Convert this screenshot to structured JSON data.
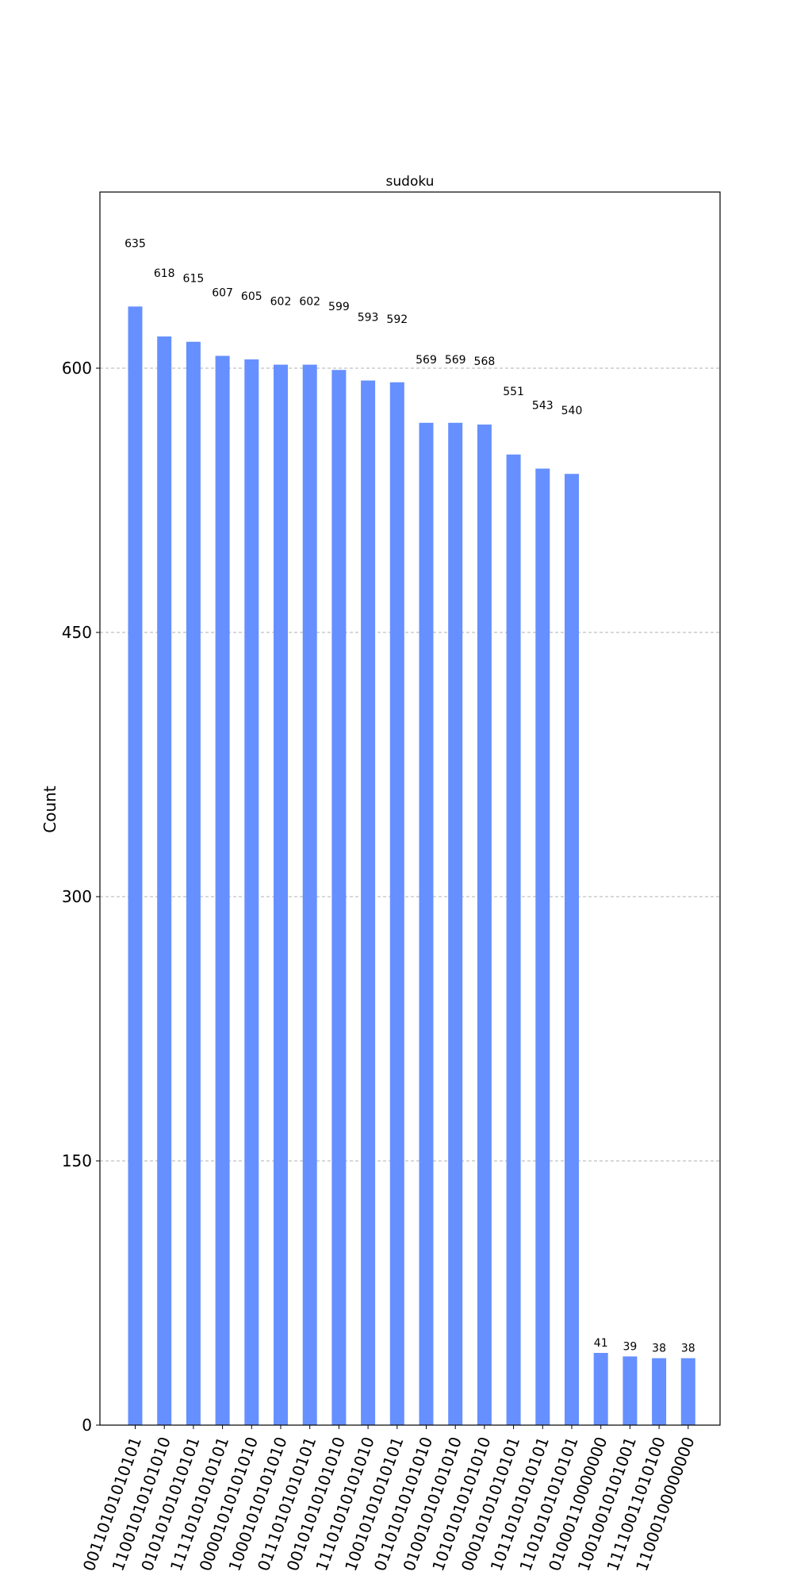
{
  "chart_data": {
    "type": "bar",
    "title": "sudoku",
    "xlabel": "",
    "ylabel": "Count",
    "ylim": [
      0,
      700
    ],
    "yticks": [
      0,
      150,
      300,
      450,
      600
    ],
    "grid": true,
    "bar_color": "#6690ff",
    "categories": [
      "00110101010101",
      "11001010101010",
      "01010101010101",
      "11110101010101",
      "00001010101010",
      "10001010101010",
      "01110101010101",
      "00101010101010",
      "11101010101010",
      "10010101010101",
      "01101010101010",
      "01001010101010",
      "10101010101010",
      "00010101010101",
      "10110101010101",
      "11010101010101",
      "01000110000000",
      "10010010101001",
      "11110011010100",
      "11000100000000"
    ],
    "values": [
      635,
      618,
      615,
      607,
      605,
      602,
      602,
      599,
      593,
      592,
      569,
      569,
      568,
      551,
      543,
      540,
      41,
      39,
      38,
      38
    ]
  }
}
